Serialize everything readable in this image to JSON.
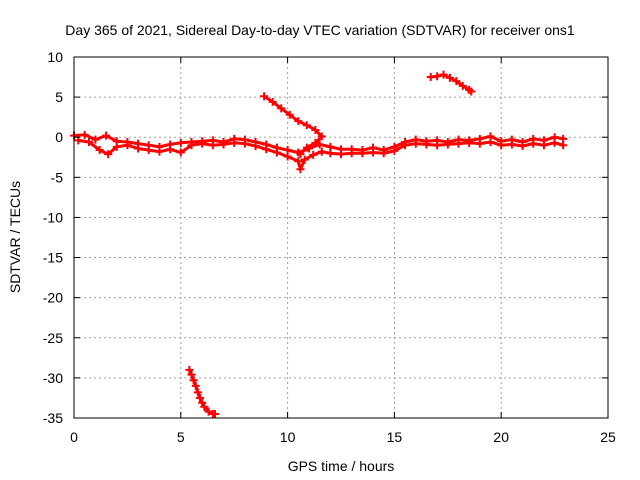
{
  "chart_data": {
    "type": "scatter",
    "title": "Day 365 of 2021, Sidereal Day-to-day VTEC variation (SDTVAR) for receiver ons1",
    "xlabel": "GPS time / hours",
    "ylabel": "SDTVAR / TECUs",
    "xlim": [
      0,
      25
    ],
    "ylim": [
      -35,
      10
    ],
    "x_ticks": [
      0,
      5,
      10,
      15,
      20,
      25
    ],
    "x_tick_labels": [
      "0",
      "5",
      "10",
      "15",
      "20",
      "25"
    ],
    "y_ticks": [
      10,
      5,
      0,
      -5,
      -10,
      -15,
      -20,
      -25,
      -30,
      -35
    ],
    "y_tick_labels": [
      "10",
      "5",
      "0",
      "-5",
      "-10",
      "-15",
      "-20",
      "-25",
      "-30",
      "-35"
    ],
    "grid": true,
    "marker_color": "#ff0000",
    "series": [
      {
        "name": "band-main-upper",
        "points": [
          [
            0.0,
            0.2
          ],
          [
            0.5,
            0.3
          ],
          [
            1.0,
            -0.3
          ],
          [
            1.5,
            0.2
          ],
          [
            2.0,
            -0.5
          ],
          [
            2.5,
            -0.6
          ],
          [
            3.0,
            -0.8
          ],
          [
            3.5,
            -1.0
          ],
          [
            4.0,
            -1.2
          ],
          [
            4.5,
            -0.9
          ],
          [
            5.0,
            -0.7
          ],
          [
            5.5,
            -0.6
          ],
          [
            6.0,
            -0.5
          ],
          [
            6.5,
            -0.4
          ],
          [
            7.0,
            -0.6
          ],
          [
            7.5,
            -0.2
          ],
          [
            8.0,
            -0.3
          ],
          [
            8.5,
            -0.6
          ],
          [
            9.0,
            -0.9
          ],
          [
            9.5,
            -1.3
          ],
          [
            10.0,
            -1.6
          ],
          [
            10.5,
            -1.9
          ],
          [
            11.0,
            -1.4
          ],
          [
            11.5,
            -0.9
          ],
          [
            12.0,
            -1.2
          ],
          [
            12.5,
            -1.5
          ],
          [
            13.0,
            -1.5
          ],
          [
            13.5,
            -1.6
          ],
          [
            14.0,
            -1.3
          ],
          [
            14.5,
            -1.6
          ],
          [
            15.0,
            -1.2
          ],
          [
            15.5,
            -0.6
          ],
          [
            16.0,
            -0.3
          ],
          [
            16.5,
            -0.5
          ],
          [
            17.0,
            -0.4
          ],
          [
            17.5,
            -0.6
          ],
          [
            18.0,
            -0.3
          ],
          [
            18.5,
            -0.4
          ],
          [
            19.0,
            -0.2
          ],
          [
            19.5,
            0.1
          ],
          [
            20.0,
            -0.5
          ],
          [
            20.5,
            -0.3
          ],
          [
            21.0,
            -0.6
          ],
          [
            21.5,
            -0.2
          ],
          [
            22.0,
            -0.4
          ],
          [
            22.5,
            0.0
          ],
          [
            22.9,
            -0.2
          ]
        ]
      },
      {
        "name": "band-main-lower",
        "points": [
          [
            0.2,
            -0.4
          ],
          [
            0.7,
            -0.6
          ],
          [
            1.2,
            -1.6
          ],
          [
            1.6,
            -2.1
          ],
          [
            2.0,
            -1.2
          ],
          [
            2.5,
            -1.0
          ],
          [
            3.0,
            -1.4
          ],
          [
            3.5,
            -1.6
          ],
          [
            4.0,
            -1.8
          ],
          [
            4.5,
            -1.5
          ],
          [
            5.0,
            -1.9
          ],
          [
            5.5,
            -1.0
          ],
          [
            6.0,
            -0.8
          ],
          [
            6.5,
            -1.0
          ],
          [
            7.0,
            -0.9
          ],
          [
            7.5,
            -0.7
          ],
          [
            8.0,
            -0.8
          ],
          [
            8.5,
            -1.1
          ],
          [
            9.0,
            -1.5
          ],
          [
            9.5,
            -1.9
          ],
          [
            10.0,
            -2.4
          ],
          [
            10.5,
            -3.0
          ],
          [
            10.6,
            -4.0
          ],
          [
            10.8,
            -2.8
          ],
          [
            11.2,
            -2.2
          ],
          [
            11.6,
            -1.8
          ],
          [
            12.0,
            -2.0
          ],
          [
            12.5,
            -2.1
          ],
          [
            13.0,
            -2.0
          ],
          [
            13.5,
            -2.0
          ],
          [
            14.0,
            -1.9
          ],
          [
            14.5,
            -2.0
          ],
          [
            15.0,
            -1.7
          ],
          [
            15.5,
            -1.0
          ],
          [
            16.0,
            -0.8
          ],
          [
            16.5,
            -0.9
          ],
          [
            17.0,
            -1.0
          ],
          [
            17.5,
            -0.9
          ],
          [
            18.0,
            -0.8
          ],
          [
            18.5,
            -0.7
          ],
          [
            19.0,
            -0.8
          ],
          [
            19.5,
            -0.6
          ],
          [
            20.0,
            -1.0
          ],
          [
            20.5,
            -0.9
          ],
          [
            21.0,
            -1.1
          ],
          [
            21.5,
            -0.8
          ],
          [
            22.0,
            -1.0
          ],
          [
            22.5,
            -0.7
          ],
          [
            22.9,
            -1.0
          ]
        ]
      },
      {
        "name": "arc-descending",
        "points": [
          [
            8.9,
            5.1
          ],
          [
            9.3,
            4.4
          ],
          [
            9.7,
            3.6
          ],
          [
            10.1,
            2.8
          ],
          [
            10.5,
            2.0
          ],
          [
            10.9,
            1.5
          ],
          [
            11.3,
            0.9
          ],
          [
            11.6,
            0.1
          ],
          [
            11.3,
            -0.7
          ],
          [
            10.9,
            -1.3
          ],
          [
            10.6,
            -2.1
          ]
        ]
      },
      {
        "name": "arc-high",
        "points": [
          [
            16.7,
            7.5
          ],
          [
            17.0,
            7.6
          ],
          [
            17.3,
            7.8
          ],
          [
            17.6,
            7.4
          ],
          [
            17.9,
            7.0
          ],
          [
            18.2,
            6.4
          ],
          [
            18.5,
            5.9
          ],
          [
            18.6,
            5.7
          ]
        ]
      },
      {
        "name": "arc-low",
        "points": [
          [
            5.4,
            -29.0
          ],
          [
            5.5,
            -29.6
          ],
          [
            5.6,
            -30.3
          ],
          [
            5.7,
            -31.0
          ],
          [
            5.8,
            -31.8
          ],
          [
            5.9,
            -32.5
          ],
          [
            6.0,
            -33.1
          ],
          [
            6.1,
            -33.6
          ],
          [
            6.3,
            -34.2
          ],
          [
            6.5,
            -34.5
          ],
          [
            6.6,
            -34.5
          ]
        ]
      }
    ]
  }
}
